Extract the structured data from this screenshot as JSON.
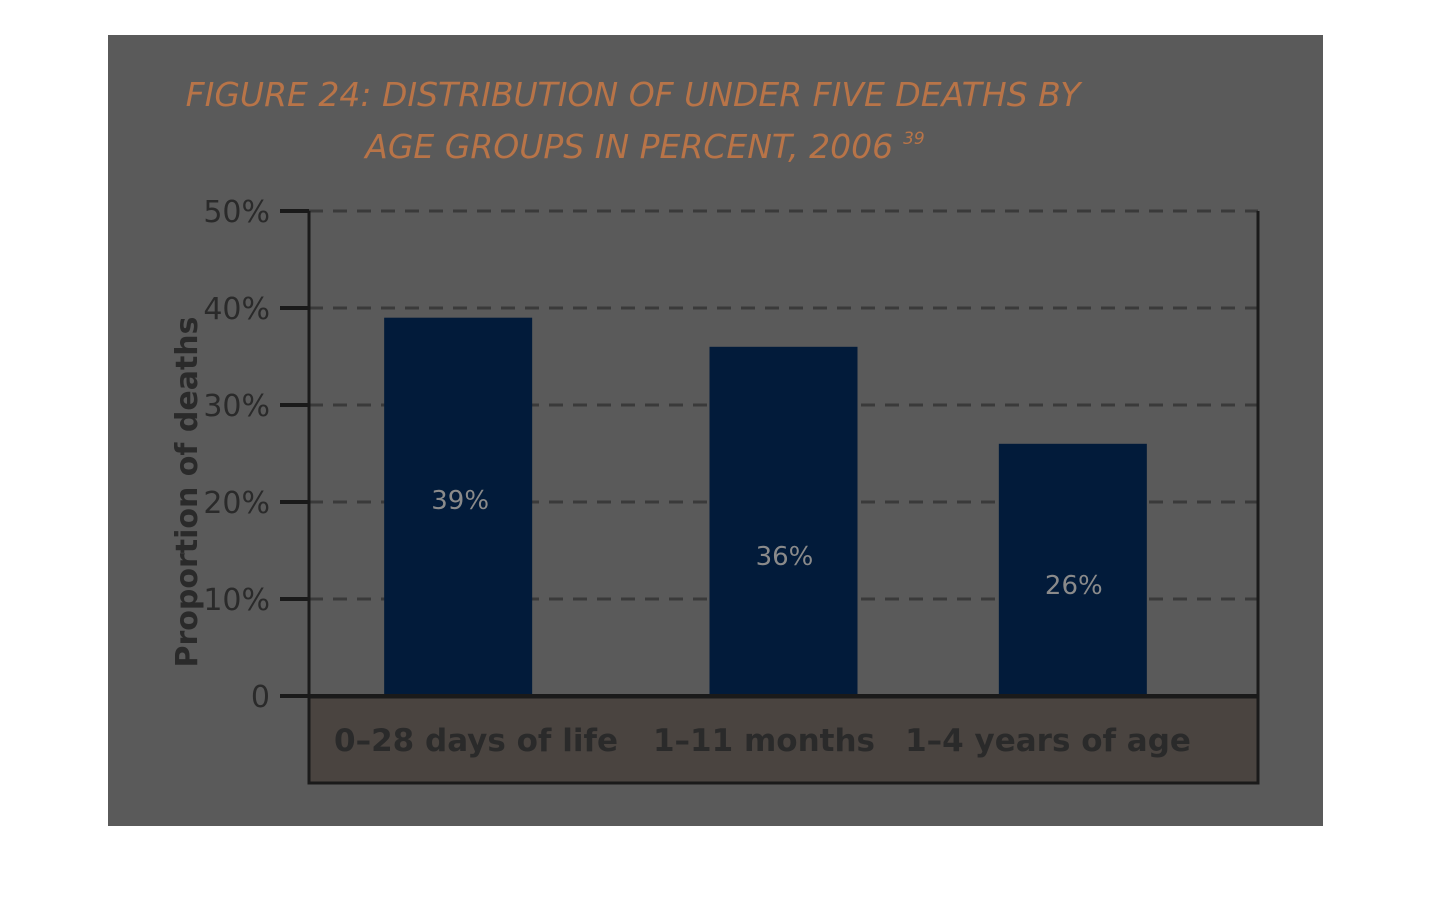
{
  "chart_data": {
    "type": "bar",
    "title_line1": "FIGURE 24: DISTRIBUTION OF UNDER FIVE DEATHS BY",
    "title_line2": "AGE GROUPS IN PERCENT, 2006",
    "title_superscript": "39",
    "ylabel": "Proportion of deaths",
    "categories": [
      "0–28 days of life",
      "1–11 months",
      "1–4 years of age"
    ],
    "values": [
      39,
      36,
      26
    ],
    "data_labels": [
      "39%",
      "36%",
      "26%"
    ],
    "ylim": [
      0,
      50
    ],
    "yticks": [
      0,
      10,
      20,
      30,
      40,
      50
    ],
    "ytick_labels": [
      "0",
      "10%",
      "20%",
      "30%",
      "40%",
      "50%"
    ],
    "grid": "dashed horizontal",
    "legend": "none",
    "colors": {
      "panel": "#5a5a5a",
      "bar": "#021b3a",
      "title": "#b87448",
      "axis": "#1a1a1a",
      "grid": "#3a3a3a",
      "category_band": "#4a4440",
      "data_label": "#8a8a8a"
    }
  }
}
